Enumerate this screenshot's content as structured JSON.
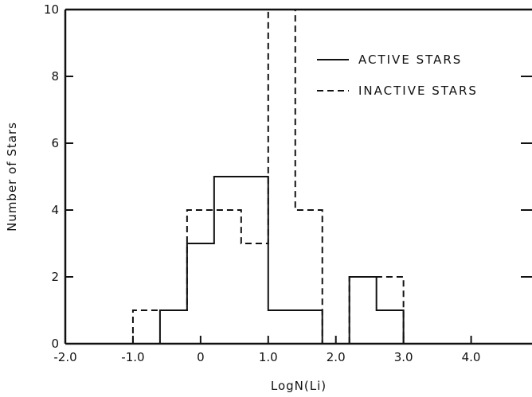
{
  "chart_data": {
    "type": "histogram",
    "title": "",
    "xlabel": "LogN(Li)",
    "ylabel": "Number of Stars",
    "xlim": [
      -2.0,
      4.9
    ],
    "ylim": [
      0,
      10
    ],
    "x_ticks": [
      -2.0,
      -1.0,
      0,
      1.0,
      2.0,
      3.0,
      4.0
    ],
    "x_tick_labels": [
      "-2.0",
      "-1.0",
      "0",
      "1.0",
      "2.0",
      "3.0",
      "4.0"
    ],
    "y_ticks": [
      0,
      2,
      4,
      6,
      8,
      10
    ],
    "y_tick_labels": [
      "0",
      "2",
      "4",
      "6",
      "8",
      "10"
    ],
    "grid": false,
    "legend_position": "top-right",
    "bin_edges": [
      -1.0,
      -0.6,
      -0.2,
      0.2,
      0.6,
      1.0,
      1.4,
      1.8,
      2.2,
      2.6,
      3.0
    ],
    "series": [
      {
        "name": "ACTIVE STARS",
        "line_style": "solid",
        "steps": [
          {
            "x0": -0.6,
            "x1": -0.2,
            "count": 1
          },
          {
            "x0": -0.2,
            "x1": 0.2,
            "count": 3
          },
          {
            "x0": 0.2,
            "x1": 0.6,
            "count": 5
          },
          {
            "x0": 0.6,
            "x1": 1.0,
            "count": 5
          },
          {
            "x0": 1.0,
            "x1": 1.4,
            "count": 1
          },
          {
            "x0": 1.4,
            "x1": 1.8,
            "count": 1
          },
          {
            "x0": 1.8,
            "x1": 2.2,
            "count": 0
          },
          {
            "x0": 2.2,
            "x1": 2.6,
            "count": 2
          },
          {
            "x0": 2.6,
            "x1": 3.0,
            "count": 1
          }
        ]
      },
      {
        "name": "INACTIVE STARS",
        "line_style": "dashed",
        "steps": [
          {
            "x0": -1.0,
            "x1": -0.6,
            "count": 1
          },
          {
            "x0": -0.6,
            "x1": -0.2,
            "count": 1
          },
          {
            "x0": -0.2,
            "x1": 0.2,
            "count": 4
          },
          {
            "x0": 0.2,
            "x1": 0.6,
            "count": 4
          },
          {
            "x0": 0.6,
            "x1": 1.0,
            "count": 3
          },
          {
            "x0": 1.0,
            "x1": 1.4,
            "count": 10
          },
          {
            "x0": 1.4,
            "x1": 1.8,
            "count": 4
          },
          {
            "x0": 1.8,
            "x1": 2.2,
            "count": 0
          },
          {
            "x0": 2.2,
            "x1": 2.6,
            "count": 2
          },
          {
            "x0": 2.6,
            "x1": 3.0,
            "count": 2
          }
        ]
      }
    ]
  }
}
